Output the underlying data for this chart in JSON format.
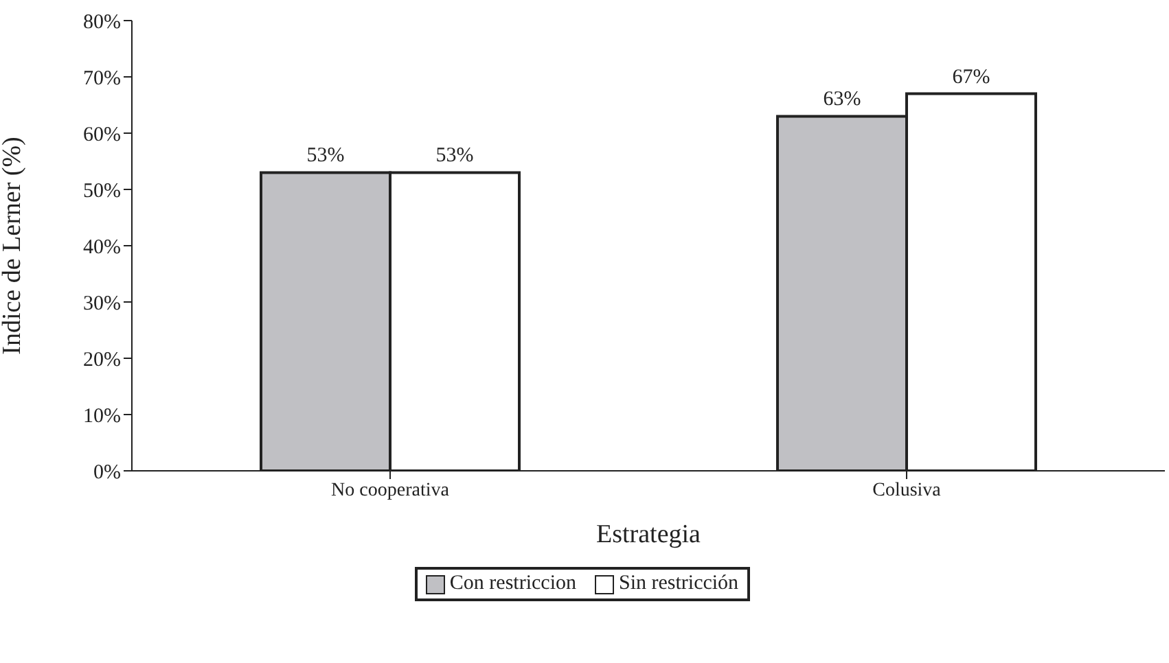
{
  "chart_data": {
    "type": "bar",
    "xlabel": "Estrategia",
    "ylabel": "Indice de Lerner (%)",
    "categories": [
      "No cooperativa",
      "Colusiva"
    ],
    "series": [
      {
        "name": "Con restriccion",
        "color": "#c0c0c4",
        "values": [
          53,
          63
        ],
        "value_labels": [
          "53%",
          "63%"
        ]
      },
      {
        "name": "Sin restricción",
        "color": "#ffffff",
        "values": [
          53,
          67
        ],
        "value_labels": [
          "53%",
          "67%"
        ]
      }
    ],
    "ylim": [
      0,
      80
    ],
    "yticks": [
      {
        "value": 0,
        "label": "0%"
      },
      {
        "value": 10,
        "label": "10%"
      },
      {
        "value": 20,
        "label": "20%"
      },
      {
        "value": 30,
        "label": "30%"
      },
      {
        "value": 40,
        "label": "40%"
      },
      {
        "value": 50,
        "label": "50%"
      },
      {
        "value": 60,
        "label": "60%"
      },
      {
        "value": 70,
        "label": "70%"
      },
      {
        "value": 80,
        "label": "80%"
      }
    ],
    "grid": false,
    "legend": "bottom"
  }
}
